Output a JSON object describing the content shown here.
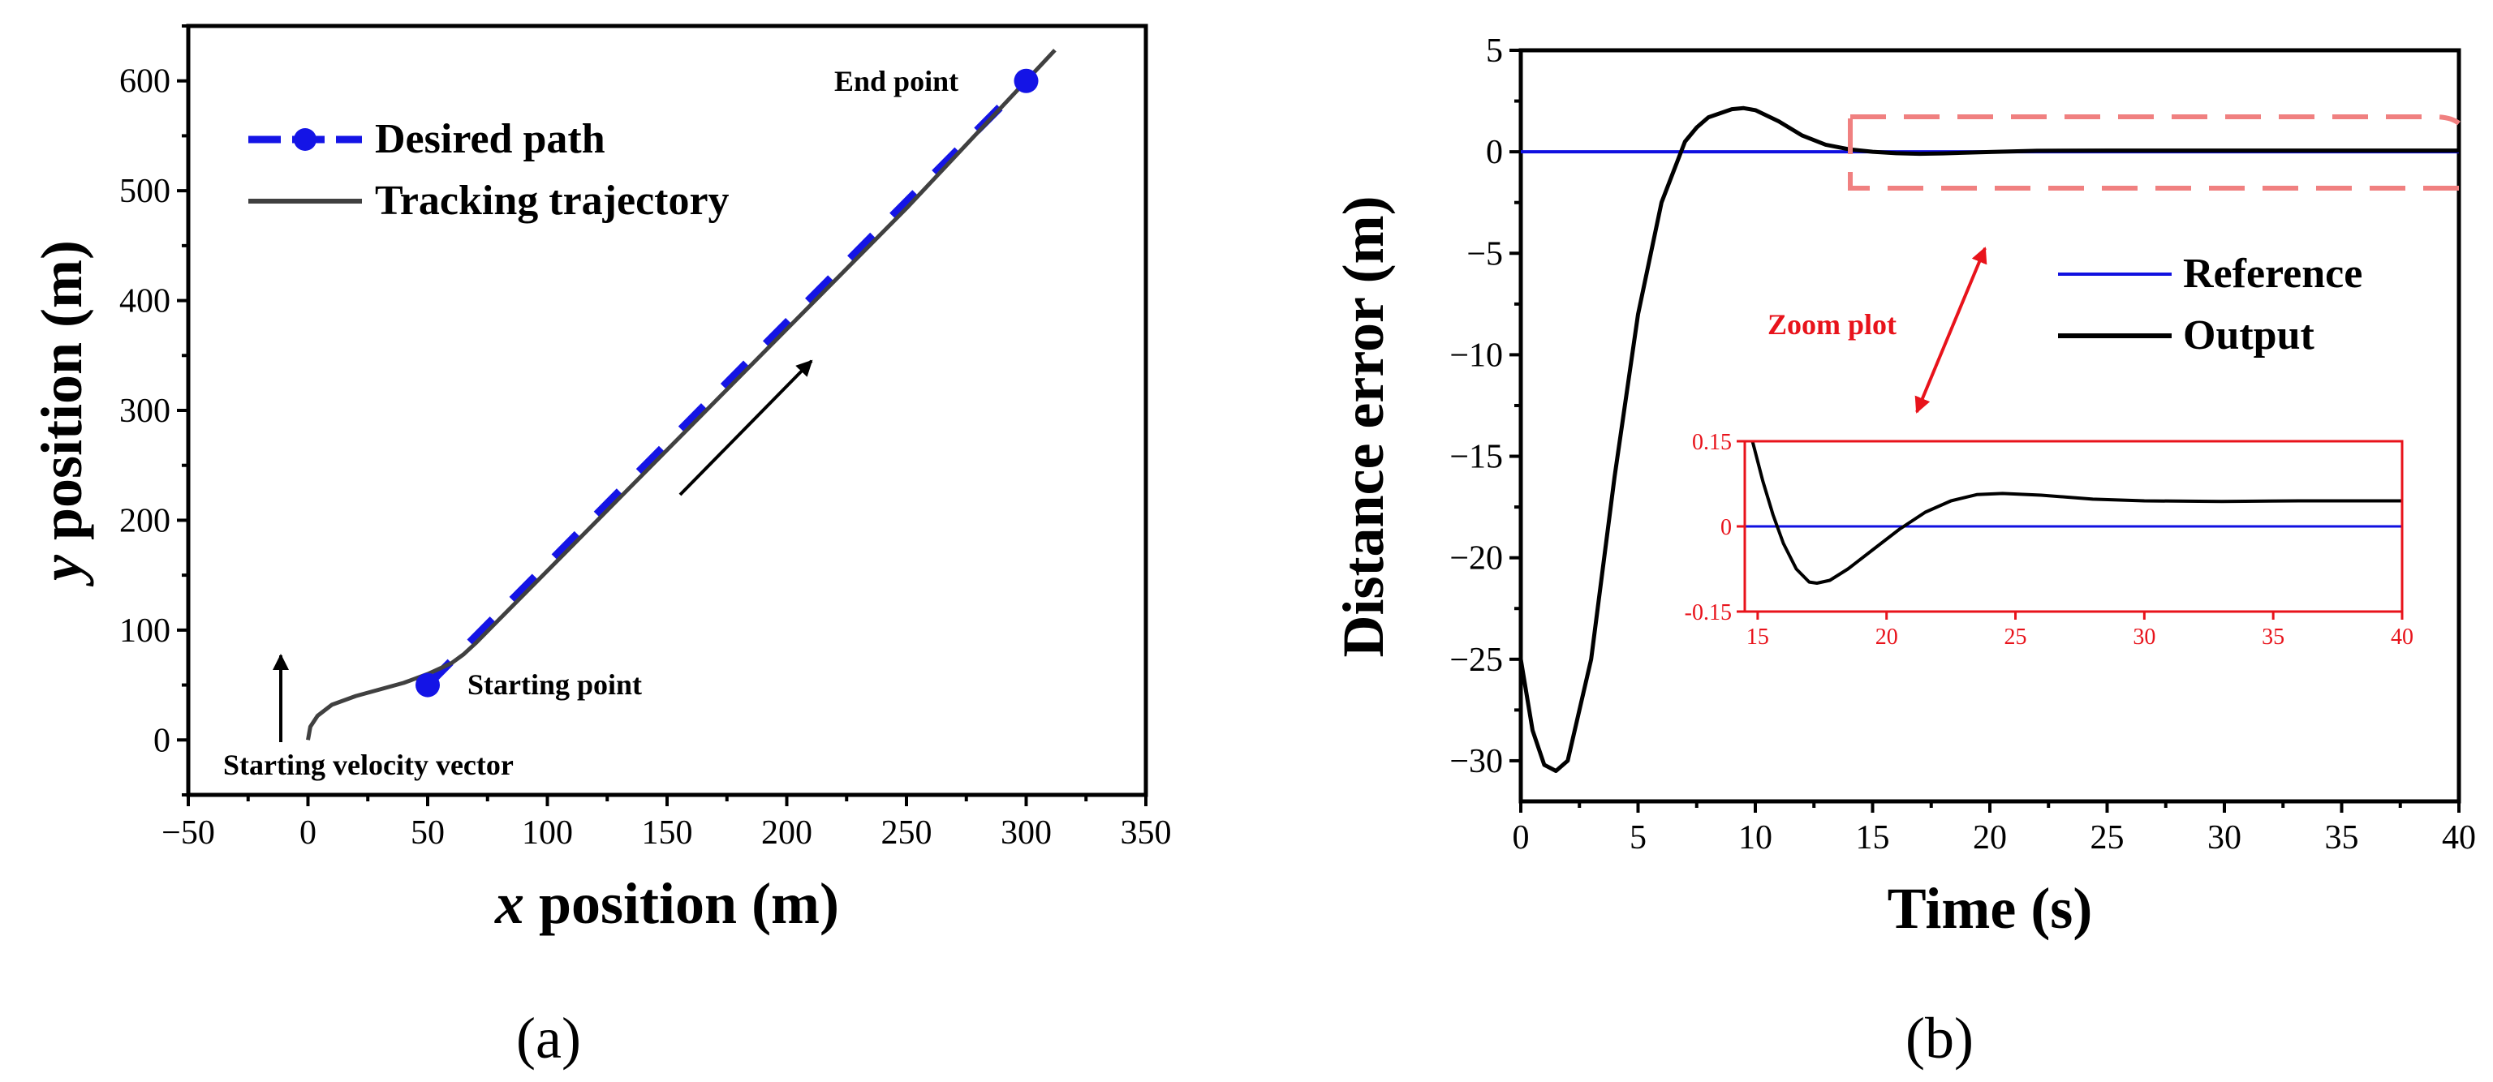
{
  "chart_data": [
    {
      "type": "line",
      "panel_label": "(a)",
      "xlabel_italic": "x",
      "xlabel_rest": "position (m)",
      "ylabel_italic": "y",
      "ylabel_rest": "position (m)",
      "xlim": [
        -50,
        350
      ],
      "ylim": [
        -50,
        650
      ],
      "xticks": [
        -50,
        0,
        50,
        100,
        150,
        200,
        250,
        300,
        350
      ],
      "xtick_labels": [
        "−50",
        "0",
        "50",
        "100",
        "150",
        "200",
        "250",
        "300",
        "350"
      ],
      "yticks": [
        0,
        100,
        200,
        300,
        400,
        500,
        600
      ],
      "ytick_labels": [
        "0",
        "100",
        "200",
        "300",
        "400",
        "500",
        "600"
      ],
      "legend": {
        "placement": "top-left",
        "entries": [
          "Desired path",
          "Tracking trajectory"
        ]
      },
      "series": [
        {
          "name": "Desired path",
          "color": "#1414e6",
          "style": "dashed",
          "x": [
            50,
            300
          ],
          "y": [
            50,
            600
          ]
        },
        {
          "name": "Tracking trajectory",
          "color": "#404040",
          "style": "solid",
          "x": [
            0,
            1,
            4,
            10,
            20,
            30,
            40,
            50,
            55,
            60,
            65,
            70,
            80,
            100,
            150,
            200,
            250,
            300,
            312
          ],
          "y": [
            0,
            12,
            22,
            32,
            40,
            46,
            52,
            60,
            65,
            70,
            78,
            88,
            110,
            154,
            264,
            374,
            484,
            600,
            628
          ]
        }
      ],
      "markers": [
        {
          "label": "Starting point",
          "x": 50,
          "y": 50
        },
        {
          "label": "End point",
          "x": 300,
          "y": 600
        }
      ],
      "annotations": {
        "start_velocity": "Starting velocity vector"
      }
    },
    {
      "type": "line",
      "panel_label": "(b)",
      "xlabel": "Time (s)",
      "ylabel": "Distance error (m)",
      "xlim": [
        0,
        40
      ],
      "ylim": [
        -32,
        5
      ],
      "xticks": [
        0,
        5,
        10,
        15,
        20,
        25,
        30,
        35,
        40
      ],
      "xtick_labels": [
        "0",
        "5",
        "10",
        "15",
        "20",
        "25",
        "30",
        "35",
        "40"
      ],
      "yticks": [
        5,
        0,
        -5,
        -10,
        -15,
        -20,
        -25,
        -30
      ],
      "ytick_labels": [
        "5",
        "0",
        "−5",
        "−10",
        "−15",
        "−20",
        "−25",
        "−30"
      ],
      "legend": {
        "placement": "top-right",
        "entries": [
          "Reference",
          "Output"
        ]
      },
      "series": [
        {
          "name": "Reference",
          "color": "#1010e0",
          "x": [
            0,
            40
          ],
          "y": [
            0,
            0
          ]
        },
        {
          "name": "Output",
          "color": "#000000",
          "x": [
            0,
            0.5,
            1,
            1.5,
            2,
            3,
            4,
            5,
            6,
            7,
            7.5,
            8,
            9,
            9.5,
            10,
            11,
            12,
            13,
            14,
            15,
            16,
            17,
            18,
            20,
            22,
            25,
            30,
            35,
            40
          ],
          "y": [
            -25,
            -28.5,
            -30.2,
            -30.5,
            -30,
            -25,
            -16,
            -8,
            -2.5,
            0.5,
            1.2,
            1.7,
            2.1,
            2.15,
            2.05,
            1.5,
            0.8,
            0.35,
            0.12,
            0.0,
            -0.07,
            -0.1,
            -0.08,
            -0.01,
            0.05,
            0.06,
            0.06,
            0.06,
            0.06
          ]
        }
      ],
      "zoom_annotation": "Zoom plot",
      "inset": {
        "xlim": [
          14.5,
          40
        ],
        "ylim": [
          -0.15,
          0.15
        ],
        "xticks": [
          15,
          20,
          25,
          30,
          35,
          40
        ],
        "xtick_labels": [
          "15",
          "20",
          "25",
          "30",
          "35",
          "40"
        ],
        "yticks": [
          0.15,
          0,
          -0.15
        ],
        "ytick_labels": [
          "0.15",
          "0",
          "-0.15"
        ],
        "reference": {
          "x": [
            14.5,
            40
          ],
          "y": [
            0,
            0
          ]
        },
        "output": {
          "x": [
            14.8,
            15.2,
            15.6,
            16,
            16.5,
            17,
            17.3,
            17.8,
            18.5,
            19.5,
            20.5,
            21.5,
            22.5,
            23.5,
            24.5,
            26,
            28,
            30,
            33,
            36,
            40
          ],
          "y": [
            0.15,
            0.08,
            0.02,
            -0.03,
            -0.075,
            -0.098,
            -0.1,
            -0.095,
            -0.075,
            -0.04,
            -0.005,
            0.025,
            0.045,
            0.056,
            0.058,
            0.055,
            0.048,
            0.045,
            0.044,
            0.045,
            0.045
          ]
        }
      }
    }
  ]
}
